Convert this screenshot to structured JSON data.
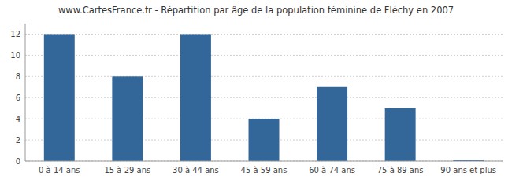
{
  "chart_data": {
    "type": "bar",
    "title": "www.CartesFrance.fr - Répartition par âge de la population féminine de Fléchy en 2007",
    "categories": [
      "0 à 14 ans",
      "15 à 29 ans",
      "30 à 44 ans",
      "45 à 59 ans",
      "60 à 74 ans",
      "75 à 89 ans",
      "90 ans et plus"
    ],
    "values": [
      12,
      8,
      12,
      4,
      7,
      5,
      0.1
    ],
    "color": "#336699",
    "ylim": [
      0,
      13
    ],
    "yticks": [
      0,
      2,
      4,
      6,
      8,
      10,
      12
    ],
    "grid": true
  }
}
